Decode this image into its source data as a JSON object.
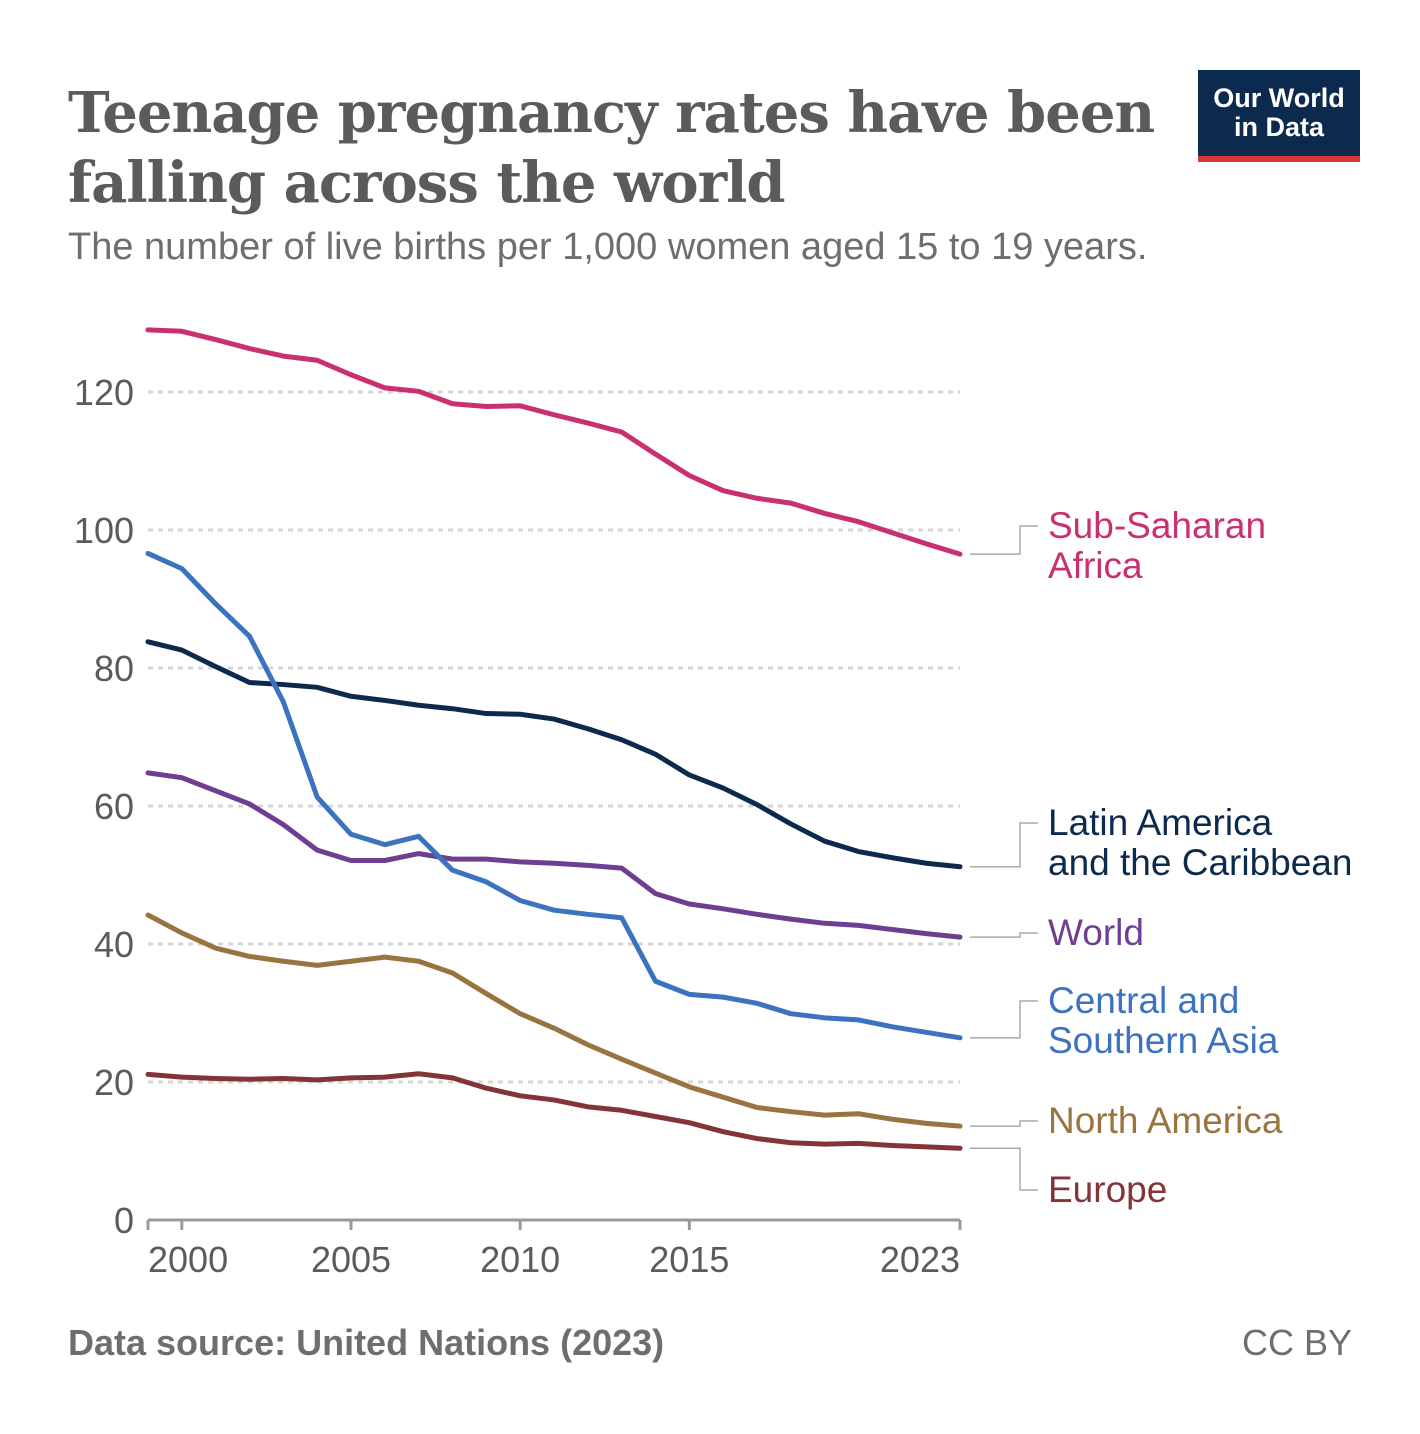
{
  "header": {
    "title_line1": "Teenage pregnancy rates have been",
    "title_line2": "falling across the world",
    "subtitle": "The number of live births per 1,000 women aged 15 to 19 years."
  },
  "logo": {
    "line1": "Our World",
    "line2": "in Data"
  },
  "footer": {
    "source": "Data source: United Nations (2023)",
    "license": "CC BY"
  },
  "chart_data": {
    "type": "line",
    "title": "Teenage pregnancy rates have been falling across the world",
    "subtitle": "The number of live births per 1,000 women aged 15 to 19 years.",
    "xlabel": "",
    "ylabel": "",
    "xlim": [
      1999,
      2023
    ],
    "ylim": [
      0,
      130
    ],
    "x_ticks": [
      2000,
      2005,
      2010,
      2015,
      2023
    ],
    "y_ticks": [
      0,
      20,
      40,
      60,
      80,
      100,
      120
    ],
    "grid": "horizontal-dashed",
    "x": [
      1999,
      2000,
      2001,
      2002,
      2003,
      2004,
      2005,
      2006,
      2007,
      2008,
      2009,
      2010,
      2011,
      2012,
      2013,
      2014,
      2015,
      2016,
      2017,
      2018,
      2019,
      2020,
      2021,
      2022,
      2023
    ],
    "series": [
      {
        "name": "Sub-Saharan Africa",
        "label_lines": [
          "Sub-Saharan",
          "Africa"
        ],
        "color": "#c9306f",
        "values": [
          129,
          128.8,
          127.6,
          126.3,
          125.2,
          124.6,
          122.5,
          120.6,
          120.1,
          118.3,
          117.9,
          118,
          116.7,
          115.5,
          114.2,
          111,
          107.9,
          105.7,
          104.6,
          103.9,
          102.4,
          101.2,
          99.6,
          98,
          96.5
        ]
      },
      {
        "name": "Latin America and the Caribbean",
        "label_lines": [
          "Latin America",
          "and the Caribbean"
        ],
        "color": "#0c2a4d",
        "values": [
          83.8,
          82.6,
          80.2,
          77.9,
          77.6,
          77.2,
          75.9,
          75.3,
          74.6,
          74.1,
          73.4,
          73.3,
          72.6,
          71.2,
          69.6,
          67.5,
          64.5,
          62.6,
          60.2,
          57.4,
          54.9,
          53.4,
          52.5,
          51.7,
          51.2
        ]
      },
      {
        "name": "World",
        "label_lines": [
          "World"
        ],
        "color": "#6d3e91",
        "values": [
          64.8,
          64.1,
          62.2,
          60.3,
          57.3,
          53.6,
          52.1,
          52.1,
          53.1,
          52.3,
          52.3,
          51.9,
          51.7,
          51.4,
          51,
          47.3,
          45.8,
          45.1,
          44.3,
          43.6,
          43,
          42.7,
          42.1,
          41.5,
          41
        ]
      },
      {
        "name": "Central and Southern Asia",
        "label_lines": [
          "Central and",
          "Southern Asia"
        ],
        "color": "#3b73c1",
        "values": [
          96.6,
          94.4,
          89.3,
          84.6,
          75.1,
          61.3,
          55.9,
          54.4,
          55.6,
          50.7,
          49,
          46.3,
          44.9,
          44.3,
          43.8,
          34.6,
          32.7,
          32.3,
          31.4,
          29.9,
          29.3,
          29,
          28,
          27.2,
          26.4
        ]
      },
      {
        "name": "North America",
        "label_lines": [
          "North America"
        ],
        "color": "#9a7440",
        "values": [
          44.2,
          41.6,
          39.4,
          38.2,
          37.5,
          36.9,
          37.5,
          38.1,
          37.5,
          35.8,
          32.8,
          29.9,
          27.8,
          25.4,
          23.3,
          21.3,
          19.3,
          17.8,
          16.3,
          15.7,
          15.2,
          15.4,
          14.6,
          14,
          13.6
        ]
      },
      {
        "name": "Europe",
        "label_lines": [
          "Europe"
        ],
        "color": "#833437",
        "values": [
          21.1,
          20.7,
          20.5,
          20.4,
          20.5,
          20.3,
          20.6,
          20.7,
          21.2,
          20.6,
          19.1,
          18,
          17.4,
          16.4,
          15.9,
          15,
          14.1,
          12.8,
          11.8,
          11.2,
          11,
          11.1,
          10.8,
          10.6,
          10.4
        ]
      }
    ]
  }
}
